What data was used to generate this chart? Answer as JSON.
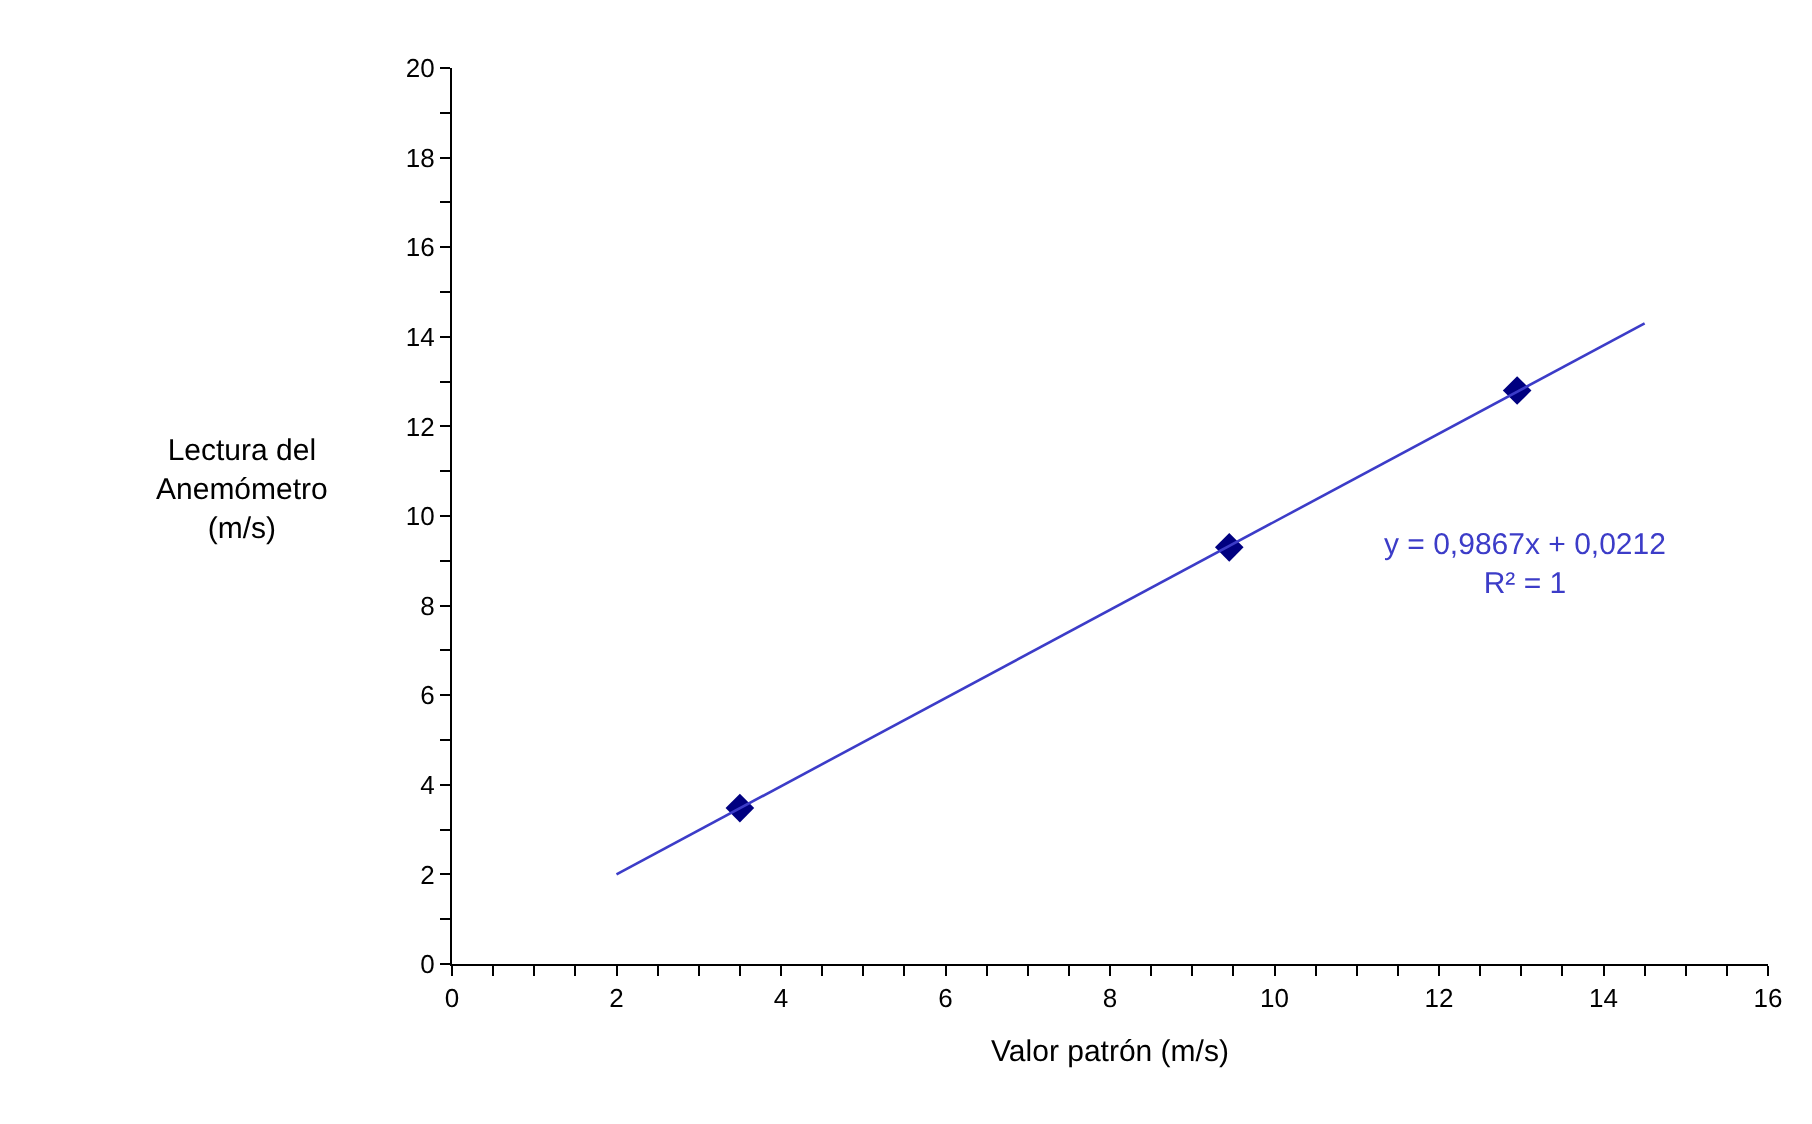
{
  "chart_data": {
    "type": "scatter",
    "xlabel": "Valor patrón (m/s)",
    "ylabel": "Lectura del\nAnemómetro\n(m/s)",
    "x": [
      3.5,
      9.45,
      12.95
    ],
    "series": [
      {
        "color": "#000080",
        "marker": "diamond",
        "values": [
          3.48,
          9.3,
          12.8
        ]
      },
      {
        "type": "line",
        "color": "#3c3cc8",
        "marker": "none",
        "line_style": "solid",
        "x": [
          2,
          14.5
        ],
        "values": [
          2.0,
          14.3
        ]
      }
    ],
    "annotations": [
      "y = 0,9867x + 0,0212\nR² = 1"
    ],
    "xlim": [
      0,
      16
    ],
    "xticks": [
      0,
      2,
      4,
      6,
      8,
      10,
      12,
      14,
      16
    ],
    "ylim": [
      0,
      20
    ],
    "yticks": [
      0,
      2,
      4,
      6,
      8,
      10,
      12,
      14,
      16,
      18,
      20
    ]
  }
}
